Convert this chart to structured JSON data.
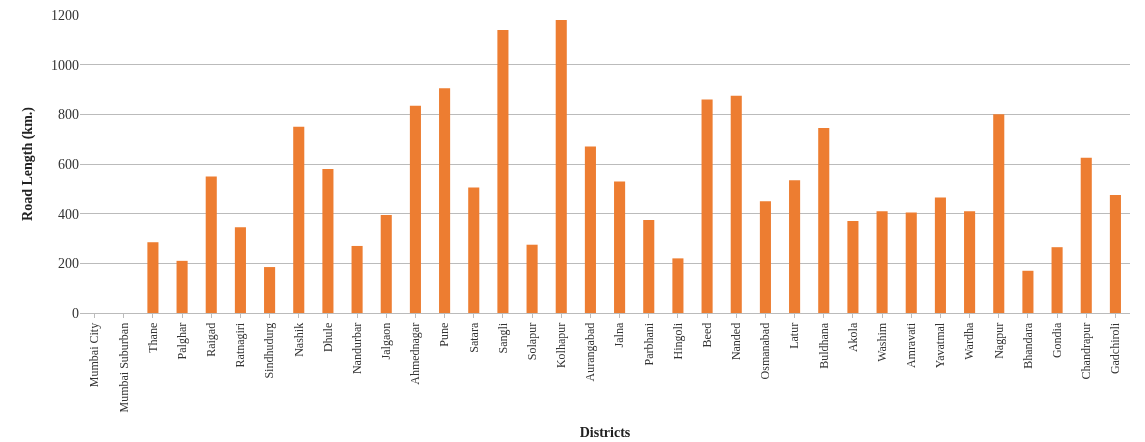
{
  "chart_data": {
    "type": "bar",
    "xlabel": "Districts",
    "ylabel": "Road Length (km.)",
    "categories": [
      "Mumbai City",
      "Mumbai Suburban",
      "Thane",
      "Palghar",
      "Raigad",
      "Ratnagiri",
      "Sindhudurg",
      "Nashik",
      "Dhule",
      "Nandurbar",
      "Jalgaon",
      "Ahmednagar",
      "Pune",
      "Satara",
      "Sangli",
      "Solapur",
      "Kolhapur",
      "Aurangabad",
      "Jalna",
      "Parbhani",
      "Hingoli",
      "Beed",
      "Nanded",
      "Osmanabad",
      "Latur",
      "Buldhana",
      "Akola",
      "Washim",
      "Amravati",
      "Yavatmal",
      "Wardha",
      "Nagpur",
      "Bhandara",
      "Gondia",
      "Chandrapur",
      "Gadchiroli"
    ],
    "values": [
      0,
      0,
      285,
      210,
      550,
      345,
      185,
      750,
      580,
      270,
      395,
      835,
      905,
      505,
      1140,
      275,
      1180,
      670,
      530,
      375,
      220,
      860,
      875,
      450,
      535,
      745,
      370,
      410,
      405,
      465,
      410,
      800,
      170,
      265,
      625,
      475
    ],
    "color": "#ed7d31",
    "ylim": [
      0,
      1200
    ],
    "yticks": [
      0,
      200,
      400,
      600,
      800,
      1000,
      1200
    ],
    "grid": "y"
  }
}
